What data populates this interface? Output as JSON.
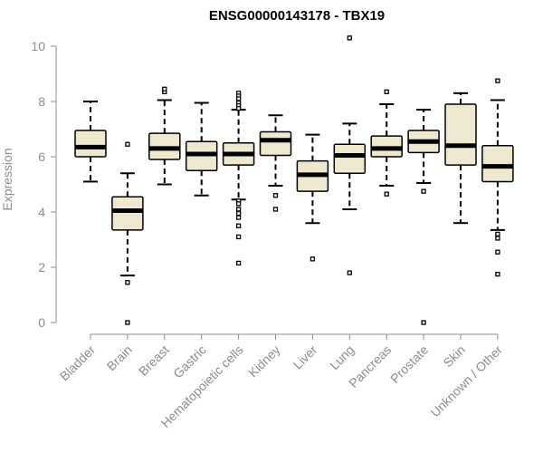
{
  "chart_data": {
    "type": "boxplot",
    "title": "ENSG00000143178 - TBX19",
    "xlabel": "",
    "ylabel": "Expression",
    "ylim": [
      0,
      10
    ],
    "yticks": [
      0,
      2,
      4,
      6,
      8,
      10
    ],
    "grid": false,
    "legend": "none",
    "colors": {
      "box_fill": "#ede8cf",
      "box_stroke": "#000000",
      "median": "#000000",
      "axis": "#8c8c8c"
    },
    "categories": [
      "Bladder",
      "Brain",
      "Breast",
      "Gastric",
      "Hematopoietic cells",
      "Kidney",
      "Liver",
      "Lung",
      "Pancreas",
      "Prostate",
      "Skin",
      "Unknown / Other"
    ],
    "boxes": [
      {
        "category": "Bladder",
        "whisker_low": 5.1,
        "q1": 6.0,
        "median": 6.35,
        "q3": 6.95,
        "whisker_high": 8.0,
        "outliers": []
      },
      {
        "category": "Brain",
        "whisker_low": 1.7,
        "q1": 3.35,
        "median": 4.05,
        "q3": 4.55,
        "whisker_high": 5.4,
        "outliers": [
          6.45,
          1.45,
          0.0
        ]
      },
      {
        "category": "Breast",
        "whisker_low": 5.0,
        "q1": 5.9,
        "median": 6.3,
        "q3": 6.85,
        "whisker_high": 8.05,
        "outliers": [
          8.35,
          8.45
        ]
      },
      {
        "category": "Gastric",
        "whisker_low": 4.6,
        "q1": 5.5,
        "median": 6.1,
        "q3": 6.55,
        "whisker_high": 7.95,
        "outliers": []
      },
      {
        "category": "Hematopoietic cells",
        "whisker_low": 4.45,
        "q1": 5.7,
        "median": 6.1,
        "q3": 6.5,
        "whisker_high": 7.7,
        "outliers": [
          8.3,
          8.2,
          8.1,
          7.95,
          7.85,
          7.75,
          4.4,
          4.3,
          4.1,
          3.95,
          3.8,
          3.5,
          3.1,
          2.15
        ]
      },
      {
        "category": "Kidney",
        "whisker_low": 4.95,
        "q1": 6.05,
        "median": 6.6,
        "q3": 6.9,
        "whisker_high": 7.5,
        "outliers": [
          4.6,
          4.1
        ]
      },
      {
        "category": "Liver",
        "whisker_low": 3.6,
        "q1": 4.75,
        "median": 5.35,
        "q3": 5.85,
        "whisker_high": 6.8,
        "outliers": [
          2.3
        ]
      },
      {
        "category": "Lung",
        "whisker_low": 4.1,
        "q1": 5.4,
        "median": 6.05,
        "q3": 6.45,
        "whisker_high": 7.2,
        "outliers": [
          10.3,
          1.8
        ]
      },
      {
        "category": "Pancreas",
        "whisker_low": 4.95,
        "q1": 6.0,
        "median": 6.3,
        "q3": 6.75,
        "whisker_high": 7.9,
        "outliers": [
          8.35,
          4.65
        ]
      },
      {
        "category": "Prostate",
        "whisker_low": 5.05,
        "q1": 6.15,
        "median": 6.55,
        "q3": 6.95,
        "whisker_high": 7.7,
        "outliers": [
          4.75,
          0.0
        ]
      },
      {
        "category": "Skin",
        "whisker_low": 3.6,
        "q1": 5.7,
        "median": 6.4,
        "q3": 7.9,
        "whisker_high": 8.3,
        "outliers": []
      },
      {
        "category": "Unknown / Other",
        "whisker_low": 3.35,
        "q1": 5.1,
        "median": 5.65,
        "q3": 6.4,
        "whisker_high": 8.05,
        "outliers": [
          8.75,
          3.2,
          3.05,
          2.55,
          1.75
        ]
      }
    ]
  }
}
